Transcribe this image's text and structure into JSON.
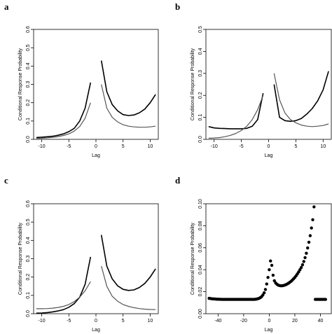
{
  "colors": {
    "dark_series": "#000000",
    "gray_series": "#555555",
    "frame": "#000000"
  },
  "chart_data": [
    {
      "panel": "a",
      "type": "line",
      "xlabel": "Lag",
      "ylabel": "Conditional Response Probability",
      "xlim": [
        -11.5,
        11.5
      ],
      "ylim": [
        0,
        0.6
      ],
      "xticks": [
        -10,
        -5,
        0,
        5,
        10
      ],
      "yticks": [
        0.0,
        0.1,
        0.2,
        0.3,
        0.4,
        0.5,
        0.6
      ],
      "grid": false,
      "series": [
        {
          "style": "dark",
          "segments": [
            {
              "x": [
                -11,
                -10,
                -9,
                -8,
                -7,
                -6,
                -5,
                -4,
                -3,
                -2,
                -1
              ],
              "y": [
                0.01,
                0.012,
                0.014,
                0.017,
                0.022,
                0.03,
                0.042,
                0.06,
                0.1,
                0.17,
                0.31
              ]
            },
            {
              "x": [
                1,
                2,
                3,
                4,
                5,
                6,
                7,
                8,
                9,
                10,
                11
              ],
              "y": [
                0.43,
                0.26,
                0.19,
                0.155,
                0.135,
                0.13,
                0.133,
                0.145,
                0.165,
                0.2,
                0.245
              ]
            }
          ]
        },
        {
          "style": "gray",
          "segments": [
            {
              "x": [
                -11,
                -10,
                -9,
                -8,
                -7,
                -6,
                -5,
                -4,
                -3,
                -2,
                -1
              ],
              "y": [
                0.005,
                0.006,
                0.008,
                0.011,
                0.015,
                0.021,
                0.03,
                0.045,
                0.07,
                0.115,
                0.2
              ]
            },
            {
              "x": [
                1,
                2,
                3,
                4,
                5,
                6,
                7,
                8,
                9,
                10,
                11
              ],
              "y": [
                0.3,
                0.17,
                0.12,
                0.095,
                0.08,
                0.072,
                0.068,
                0.066,
                0.066,
                0.068,
                0.072
              ]
            }
          ]
        }
      ]
    },
    {
      "panel": "b",
      "type": "line",
      "xlabel": "Lag",
      "ylabel": "Conditional Response Probability",
      "xlim": [
        -11.5,
        11.5
      ],
      "ylim": [
        0,
        0.5
      ],
      "xticks": [
        -10,
        -5,
        0,
        5,
        10
      ],
      "yticks": [
        0.0,
        0.1,
        0.2,
        0.3,
        0.4,
        0.5
      ],
      "grid": false,
      "series": [
        {
          "style": "dark",
          "segments": [
            {
              "x": [
                -11,
                -10,
                -9,
                -8,
                -7,
                -6,
                -5,
                -4,
                -3,
                -2,
                -1
              ],
              "y": [
                0.058,
                0.052,
                0.05,
                0.049,
                0.048,
                0.048,
                0.048,
                0.05,
                0.06,
                0.09,
                0.21
              ]
            },
            {
              "x": [
                1,
                2,
                3,
                4,
                5,
                6,
                7,
                8,
                9,
                10,
                11
              ],
              "y": [
                0.25,
                0.1,
                0.085,
                0.082,
                0.085,
                0.095,
                0.115,
                0.14,
                0.175,
                0.225,
                0.31
              ]
            }
          ]
        },
        {
          "style": "gray",
          "segments": [
            {
              "x": [
                -11,
                -10,
                -9,
                -8,
                -7,
                -6,
                -5,
                -4,
                -3,
                -2,
                -1
              ],
              "y": [
                0.005,
                0.006,
                0.008,
                0.012,
                0.018,
                0.027,
                0.04,
                0.06,
                0.09,
                0.135,
                0.2
              ]
            },
            {
              "x": [
                1,
                2,
                3,
                4,
                5,
                6,
                7,
                8,
                9,
                10,
                11
              ],
              "y": [
                0.3,
                0.18,
                0.12,
                0.09,
                0.075,
                0.065,
                0.06,
                0.058,
                0.06,
                0.063,
                0.07
              ]
            }
          ]
        }
      ]
    },
    {
      "panel": "c",
      "type": "line",
      "xlabel": "Lag",
      "ylabel": "Conditional Response Probability",
      "xlim": [
        -11.5,
        11.5
      ],
      "ylim": [
        0,
        0.6
      ],
      "xticks": [
        -10,
        -5,
        0,
        5,
        10
      ],
      "yticks": [
        0.0,
        0.1,
        0.2,
        0.3,
        0.4,
        0.5,
        0.6
      ],
      "grid": false,
      "series": [
        {
          "style": "dark",
          "segments": [
            {
              "x": [
                -11,
                -10,
                -9,
                -8,
                -7,
                -6,
                -5,
                -4,
                -3,
                -2,
                -1
              ],
              "y": [
                0.003,
                0.004,
                0.006,
                0.01,
                0.015,
                0.022,
                0.035,
                0.055,
                0.09,
                0.16,
                0.31
              ]
            },
            {
              "x": [
                1,
                2,
                3,
                4,
                5,
                6,
                7,
                8,
                9,
                10,
                11
              ],
              "y": [
                0.43,
                0.26,
                0.19,
                0.152,
                0.133,
                0.127,
                0.13,
                0.143,
                0.165,
                0.2,
                0.245
              ]
            }
          ]
        },
        {
          "style": "gray",
          "segments": [
            {
              "x": [
                -11,
                -10,
                -9,
                -8,
                -7,
                -6,
                -5,
                -4,
                -3,
                -2,
                -1
              ],
              "y": [
                0.027,
                0.027,
                0.028,
                0.03,
                0.034,
                0.04,
                0.05,
                0.066,
                0.09,
                0.125,
                0.175
              ]
            },
            {
              "x": [
                1,
                2,
                3,
                4,
                5,
                6,
                7,
                8,
                9,
                10,
                11
              ],
              "y": [
                0.26,
                0.15,
                0.095,
                0.068,
                0.05,
                0.04,
                0.033,
                0.028,
                0.025,
                0.023,
                0.022
              ]
            }
          ]
        }
      ]
    },
    {
      "panel": "d",
      "type": "scatter",
      "xlabel": "Lag",
      "ylabel": "Conditional Response Probability",
      "xlim": [
        -49.5,
        48.5
      ],
      "ylim": [
        0,
        0.1
      ],
      "xticks": [
        -40,
        -20,
        0,
        20,
        40
      ],
      "yticks": [
        0.0,
        0.02,
        0.04,
        0.06,
        0.08,
        0.1
      ],
      "ytick_labels": [
        "0.00",
        "0.02",
        "0.04",
        "0.06",
        "0.08",
        "0.10"
      ],
      "grid": false,
      "series": [
        {
          "style": "dots",
          "x_start": -47,
          "x_end": 45,
          "y": [
            0.014,
            0.0138,
            0.0136,
            0.0135,
            0.0134,
            0.0133,
            0.0132,
            0.0132,
            0.0131,
            0.0131,
            0.013,
            0.013,
            0.013,
            0.013,
            0.013,
            0.013,
            0.013,
            0.013,
            0.013,
            0.013,
            0.013,
            0.013,
            0.013,
            0.013,
            0.013,
            0.013,
            0.013,
            0.013,
            0.013,
            0.013,
            0.013,
            0.013,
            0.013,
            0.013,
            0.013,
            0.013,
            0.0131,
            0.0133,
            0.0136,
            0.014,
            0.0146,
            0.0155,
            0.017,
            0.019,
            0.022,
            0.027,
            0.033,
            0.04,
            0.048,
            0.044,
            0.035,
            0.03,
            0.028,
            0.0268,
            0.026,
            0.0256,
            0.0254,
            0.0254,
            0.0256,
            0.026,
            0.0264,
            0.027,
            0.0277,
            0.0285,
            0.0294,
            0.0305,
            0.0317,
            0.033,
            0.0345,
            0.0362,
            0.038,
            0.04,
            0.042,
            0.0445,
            0.0475,
            0.051,
            0.055,
            0.0598,
            0.065,
            0.071,
            0.078,
            0.0855,
            0.0972,
            0.013,
            0.013,
            0.013,
            0.013,
            0.013,
            0.013,
            0.013,
            0.013,
            0.013
          ]
        }
      ]
    }
  ]
}
